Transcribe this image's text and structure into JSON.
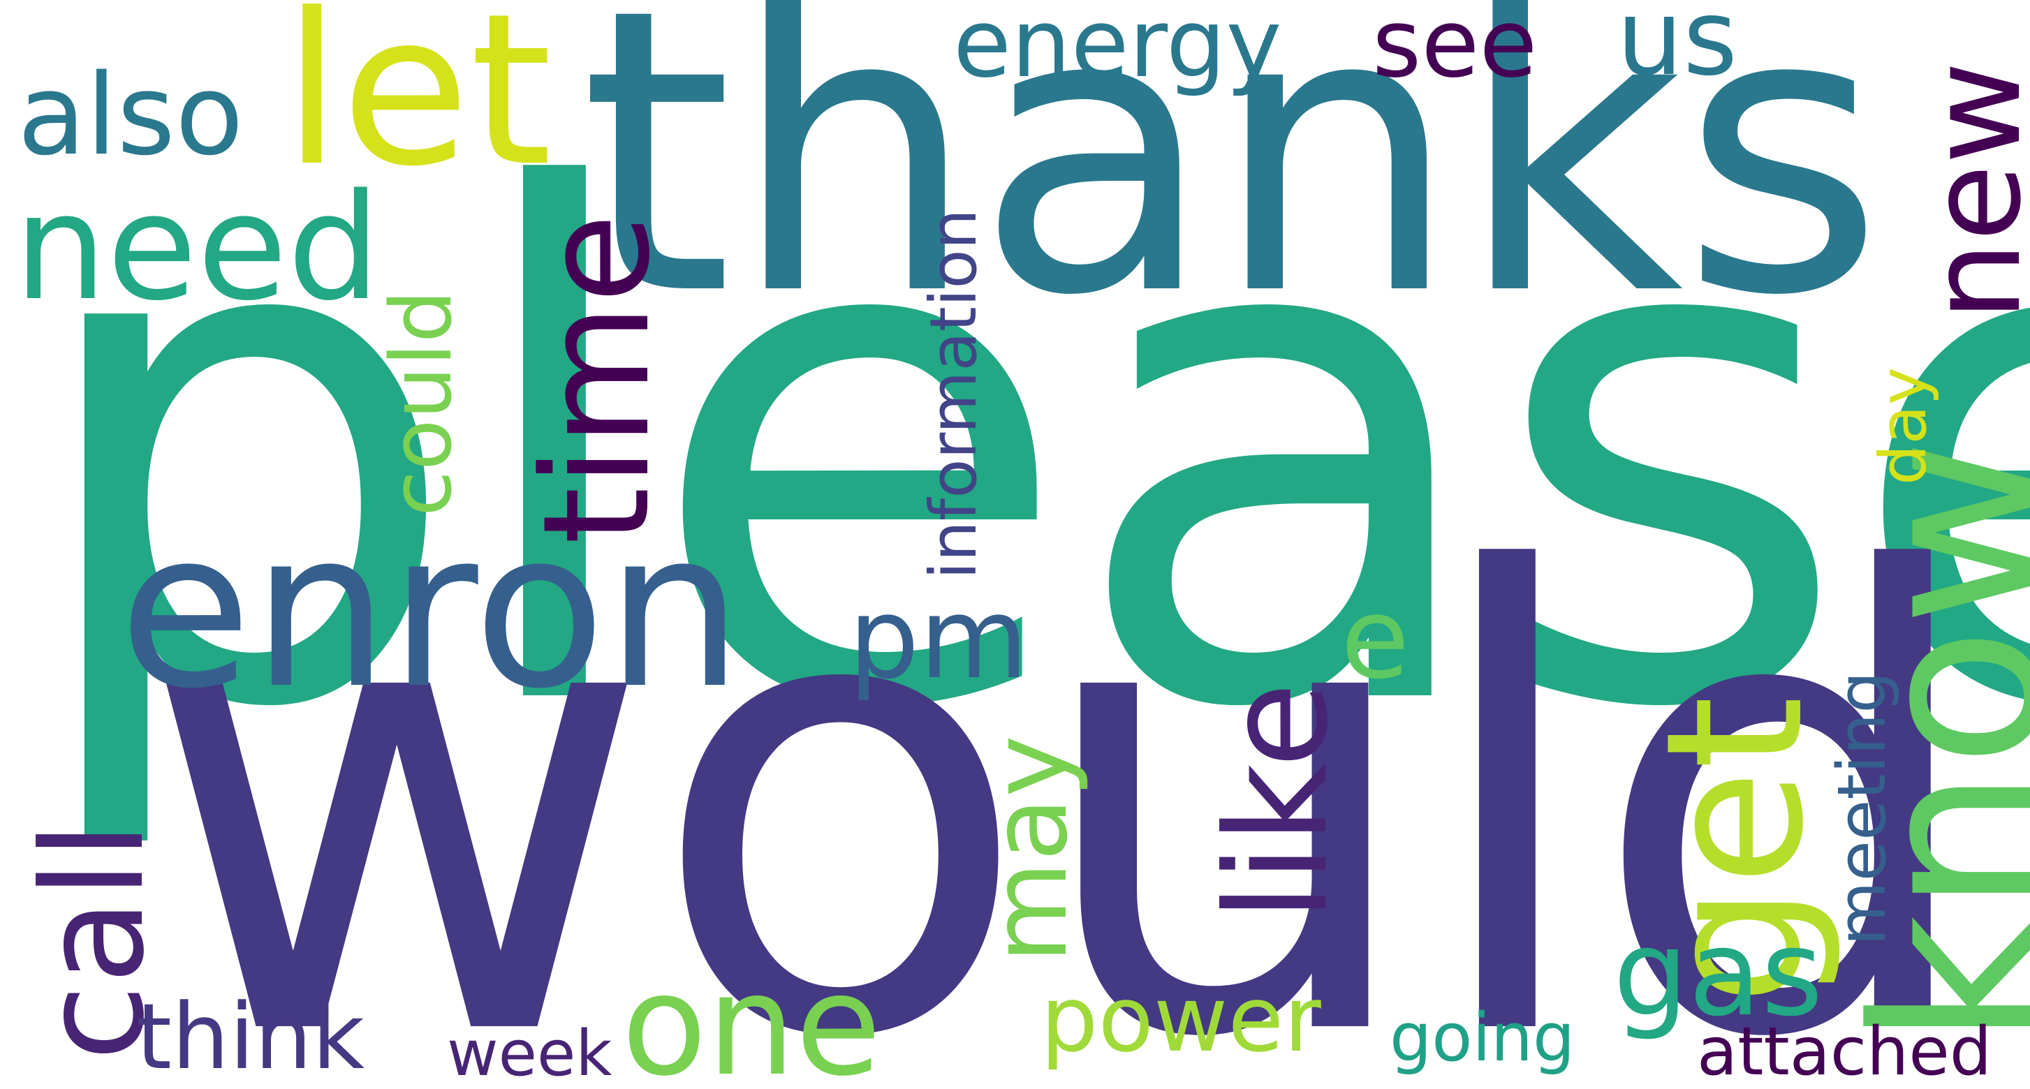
{
  "words": [
    {
      "key": "please",
      "text": "please",
      "color": "#22a884",
      "orientation": "horizontal"
    },
    {
      "key": "would",
      "text": "would",
      "color": "#443983",
      "orientation": "horizontal"
    },
    {
      "key": "thanks",
      "text": "thanks",
      "color": "#2a788e",
      "orientation": "horizontal"
    },
    {
      "key": "enron",
      "text": "enron",
      "color": "#355f8d",
      "orientation": "horizontal"
    },
    {
      "key": "let",
      "text": "let",
      "color": "#d5e21a",
      "orientation": "horizontal"
    },
    {
      "key": "know",
      "text": "know",
      "color": "#5ec962",
      "orientation": "vertical"
    },
    {
      "key": "need",
      "text": "need",
      "color": "#22a884",
      "orientation": "horizontal"
    },
    {
      "key": "time",
      "text": "time",
      "color": "#440154",
      "orientation": "vertical"
    },
    {
      "key": "get",
      "text": "get",
      "color": "#b5de2b",
      "orientation": "vertical"
    },
    {
      "key": "new",
      "text": "new",
      "color": "#440154",
      "orientation": "vertical"
    },
    {
      "key": "like",
      "text": "like",
      "color": "#482475",
      "orientation": "vertical"
    },
    {
      "key": "call",
      "text": "call",
      "color": "#482475",
      "orientation": "vertical"
    },
    {
      "key": "one",
      "text": "one",
      "color": "#7ad151",
      "orientation": "horizontal"
    },
    {
      "key": "also",
      "text": "also",
      "color": "#2a788e",
      "orientation": "horizontal"
    },
    {
      "key": "pm",
      "text": "pm",
      "color": "#355f8d",
      "orientation": "horizontal"
    },
    {
      "key": "could",
      "text": "could",
      "color": "#7ad151",
      "orientation": "vertical"
    },
    {
      "key": "energy",
      "text": "energy",
      "color": "#2a788e",
      "orientation": "horizontal"
    },
    {
      "key": "see",
      "text": "see",
      "color": "#440154",
      "orientation": "horizontal"
    },
    {
      "key": "us",
      "text": "us",
      "color": "#2a788e",
      "orientation": "horizontal"
    },
    {
      "key": "information",
      "text": "information",
      "color": "#414487",
      "orientation": "vertical"
    },
    {
      "key": "e",
      "text": "e",
      "color": "#5ec962",
      "orientation": "horizontal"
    },
    {
      "key": "may",
      "text": "may",
      "color": "#7ad151",
      "orientation": "vertical"
    },
    {
      "key": "gas",
      "text": "gas",
      "color": "#22a884",
      "orientation": "horizontal"
    },
    {
      "key": "day",
      "text": "day",
      "color": "#d5e21a",
      "orientation": "vertical"
    },
    {
      "key": "meeting",
      "text": "meeting",
      "color": "#355f8d",
      "orientation": "vertical"
    },
    {
      "key": "think",
      "text": "think",
      "color": "#443983",
      "orientation": "horizontal"
    },
    {
      "key": "week",
      "text": "week",
      "color": "#482475",
      "orientation": "horizontal"
    },
    {
      "key": "power",
      "text": "power",
      "color": "#a0da39",
      "orientation": "horizontal"
    },
    {
      "key": "going",
      "text": "going",
      "color": "#1fa187",
      "orientation": "horizontal"
    },
    {
      "key": "attached",
      "text": "attached",
      "color": "#440154",
      "orientation": "horizontal"
    }
  ]
}
